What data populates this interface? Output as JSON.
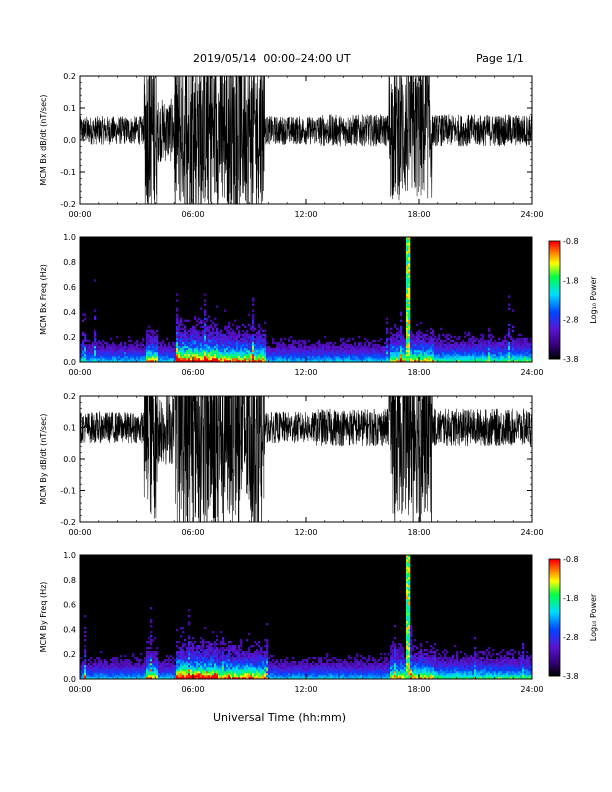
{
  "header": {
    "date_title": "2019/05/14  00:00–24:00 UT",
    "page_label": "Page 1/1"
  },
  "footer": {
    "xlabel": "Universal Time (hh:mm)"
  },
  "colorbar_label": "Log₁₀ Power",
  "chart_data": [
    {
      "type": "line",
      "name": "bx-timeseries",
      "ylabel": "MCM Bx dB/dt (nT/sec)",
      "x_ticks": [
        "00:00",
        "06:00",
        "12:00",
        "18:00",
        "24:00"
      ],
      "xlim": [
        0,
        24
      ],
      "ylim": [
        -0.2,
        0.2
      ],
      "y_ticks": [
        "-0.2",
        "-0.1",
        "0.0",
        "0.1",
        "0.2"
      ],
      "baseline": 0.03,
      "activity": [
        {
          "start": 0.0,
          "end": 3.4,
          "amp": 0.045
        },
        {
          "start": 3.4,
          "end": 4.1,
          "amp": 0.25
        },
        {
          "start": 4.1,
          "end": 5.0,
          "amp": 0.1
        },
        {
          "start": 5.0,
          "end": 7.3,
          "amp": 0.25
        },
        {
          "start": 7.3,
          "end": 9.8,
          "amp": 0.25
        },
        {
          "start": 9.8,
          "end": 12.5,
          "amp": 0.045
        },
        {
          "start": 12.5,
          "end": 16.4,
          "amp": 0.05
        },
        {
          "start": 16.4,
          "end": 18.7,
          "amp": 0.22
        },
        {
          "start": 18.7,
          "end": 24.0,
          "amp": 0.05
        }
      ]
    },
    {
      "type": "heatmap",
      "name": "bx-spectrogram",
      "ylabel": "MCM Bx Freq (Hz)",
      "x_ticks": [
        "00:00",
        "06:00",
        "12:00",
        "18:00",
        "24:00"
      ],
      "xlim": [
        0,
        24
      ],
      "ylim": [
        0,
        1.0
      ],
      "y_ticks": [
        "0.0",
        "0.2",
        "0.4",
        "0.6",
        "0.8",
        "1.0"
      ],
      "colorbar_ticks": [
        "-0.8",
        "-1.8",
        "-2.8",
        "-3.8"
      ],
      "colorbar_range": [
        -3.8,
        -0.8
      ],
      "spike_time": 17.4
    },
    {
      "type": "line",
      "name": "by-timeseries",
      "ylabel": "MCM By dB/dt (nT/sec)",
      "x_ticks": [
        "00:00",
        "06:00",
        "12:00",
        "18:00",
        "24:00"
      ],
      "xlim": [
        0,
        24
      ],
      "ylim": [
        -0.2,
        0.2
      ],
      "y_ticks": [
        "-0.2",
        "-0.1",
        "0.0",
        "0.1",
        "0.2"
      ],
      "baseline": 0.1,
      "activity": [
        {
          "start": 0.0,
          "end": 3.4,
          "amp": 0.05
        },
        {
          "start": 3.4,
          "end": 4.1,
          "amp": 0.3
        },
        {
          "start": 4.1,
          "end": 5.0,
          "amp": 0.12
        },
        {
          "start": 5.0,
          "end": 7.3,
          "amp": 0.32
        },
        {
          "start": 7.3,
          "end": 9.8,
          "amp": 0.3
        },
        {
          "start": 9.8,
          "end": 12.5,
          "amp": 0.05
        },
        {
          "start": 12.5,
          "end": 16.4,
          "amp": 0.06
        },
        {
          "start": 16.4,
          "end": 18.7,
          "amp": 0.28
        },
        {
          "start": 18.7,
          "end": 24.0,
          "amp": 0.06
        }
      ]
    },
    {
      "type": "heatmap",
      "name": "by-spectrogram",
      "ylabel": "MCM By Freq (Hz)",
      "x_ticks": [
        "00:00",
        "06:00",
        "12:00",
        "18:00",
        "24:00"
      ],
      "xlim": [
        0,
        24
      ],
      "ylim": [
        0,
        1.0
      ],
      "y_ticks": [
        "0.0",
        "0.2",
        "0.4",
        "0.6",
        "0.8",
        "1.0"
      ],
      "colorbar_ticks": [
        "-0.8",
        "-1.8",
        "-2.8",
        "-3.8"
      ],
      "colorbar_range": [
        -3.8,
        -0.8
      ],
      "spike_time": 17.4
    }
  ]
}
